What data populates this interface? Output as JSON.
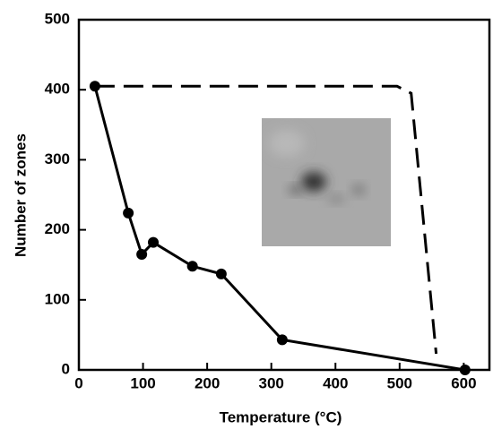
{
  "chart_data": {
    "type": "line",
    "xlabel": "Temperature (°C)",
    "ylabel": "Number of zones",
    "xlim": [
      0,
      640
    ],
    "ylim": [
      0,
      500
    ],
    "xticks": [
      0,
      100,
      200,
      300,
      400,
      500,
      600
    ],
    "yticks": [
      0,
      100,
      200,
      300,
      400,
      500
    ],
    "series": [
      {
        "color": "#000000",
        "line_style": "solid",
        "markers": true,
        "x": [
          25,
          77,
          98,
          116,
          177,
          222,
          317,
          602
        ],
        "values": [
          405,
          224,
          165,
          182,
          148,
          137,
          43,
          0
        ]
      },
      {
        "color": "#000000",
        "line_style": "dashed",
        "markers": false,
        "x": [
          25,
          496,
          518,
          557
        ],
        "values": [
          405,
          405,
          395,
          23
        ]
      }
    ]
  }
}
